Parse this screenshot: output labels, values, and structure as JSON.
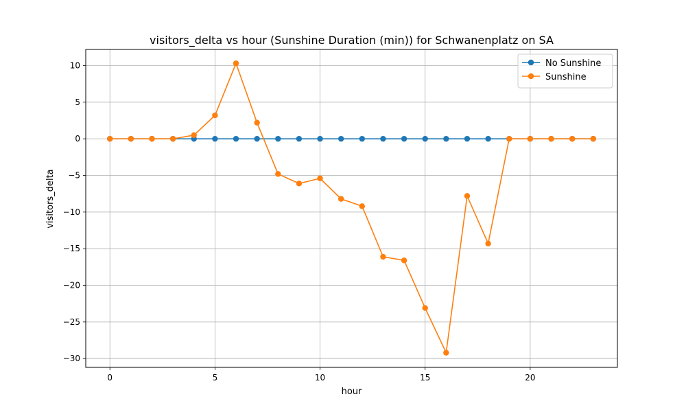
{
  "chart_data": {
    "type": "line",
    "title": "visitors_delta vs hour (Sunshine Duration (min)) for Schwanenplatz on SA",
    "xlabel": "hour",
    "ylabel": "visitors_delta",
    "xlim": [
      -1.15,
      24.15
    ],
    "ylim": [
      -31.2,
      12.2
    ],
    "xticks": [
      0,
      5,
      10,
      15,
      20
    ],
    "xtick_labels": [
      "0",
      "5",
      "10",
      "15",
      "20"
    ],
    "yticks": [
      -30,
      -25,
      -20,
      -15,
      -10,
      -5,
      0,
      5,
      10
    ],
    "ytick_labels": [
      "−30",
      "−25",
      "−20",
      "−15",
      "−10",
      "−5",
      "0",
      "5",
      "10"
    ],
    "grid": true,
    "legend_position": "top-right",
    "x": [
      0,
      1,
      2,
      3,
      4,
      5,
      6,
      7,
      8,
      9,
      10,
      11,
      12,
      13,
      14,
      15,
      16,
      17,
      18,
      19,
      20,
      21,
      22,
      23
    ],
    "series": [
      {
        "name": "No Sunshine",
        "color": "#1f77b4",
        "marker": "circle",
        "values": [
          0,
          0,
          0,
          0,
          0,
          0,
          0,
          0,
          0,
          0,
          0,
          0,
          0,
          0,
          0,
          0,
          0,
          0,
          0,
          0,
          0,
          0,
          0,
          0
        ]
      },
      {
        "name": "Sunshine",
        "color": "#ff7f0e",
        "marker": "circle",
        "values": [
          0,
          0,
          0,
          0,
          0.5,
          3.2,
          10.3,
          2.2,
          -4.8,
          -6.1,
          -5.4,
          -8.2,
          -9.2,
          -16.1,
          -16.6,
          -23.1,
          -29.2,
          -7.8,
          -14.3,
          0,
          0,
          0,
          0,
          0
        ]
      }
    ]
  }
}
